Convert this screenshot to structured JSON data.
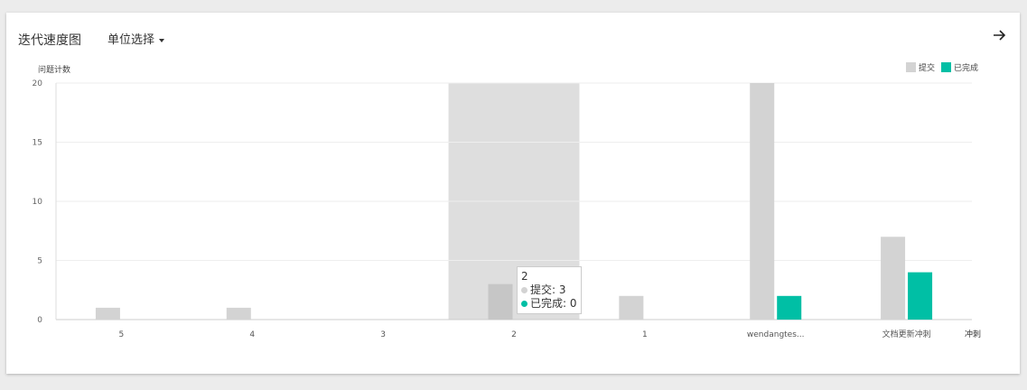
{
  "header": {
    "title": "迭代速度图",
    "unit_label": "单位选择"
  },
  "colors": {
    "committed": "#d3d3d3",
    "completed": "#00bfa5",
    "hover_band": "#dedede",
    "hover_bar": "#c6c6c6"
  },
  "tooltip": {
    "title": "2",
    "committed_label": "提交: 3",
    "completed_label": "已完成: 0"
  },
  "chart_data": {
    "type": "bar",
    "title": "",
    "ylabel": "问题计数",
    "xlabel": "冲刺",
    "ylim": [
      0,
      20
    ],
    "yticks": [
      0,
      5,
      10,
      15,
      20
    ],
    "categories": [
      "5",
      "4",
      "3",
      "2",
      "1",
      "wendangtes...",
      "文档更新冲刺"
    ],
    "series": [
      {
        "name": "提交",
        "values": [
          1,
          1,
          0,
          3,
          2,
          20,
          7
        ]
      },
      {
        "name": "已完成",
        "values": [
          0,
          0,
          0,
          0,
          0,
          2,
          4
        ]
      }
    ],
    "highlighted_category": "2",
    "legend": "top-right"
  }
}
